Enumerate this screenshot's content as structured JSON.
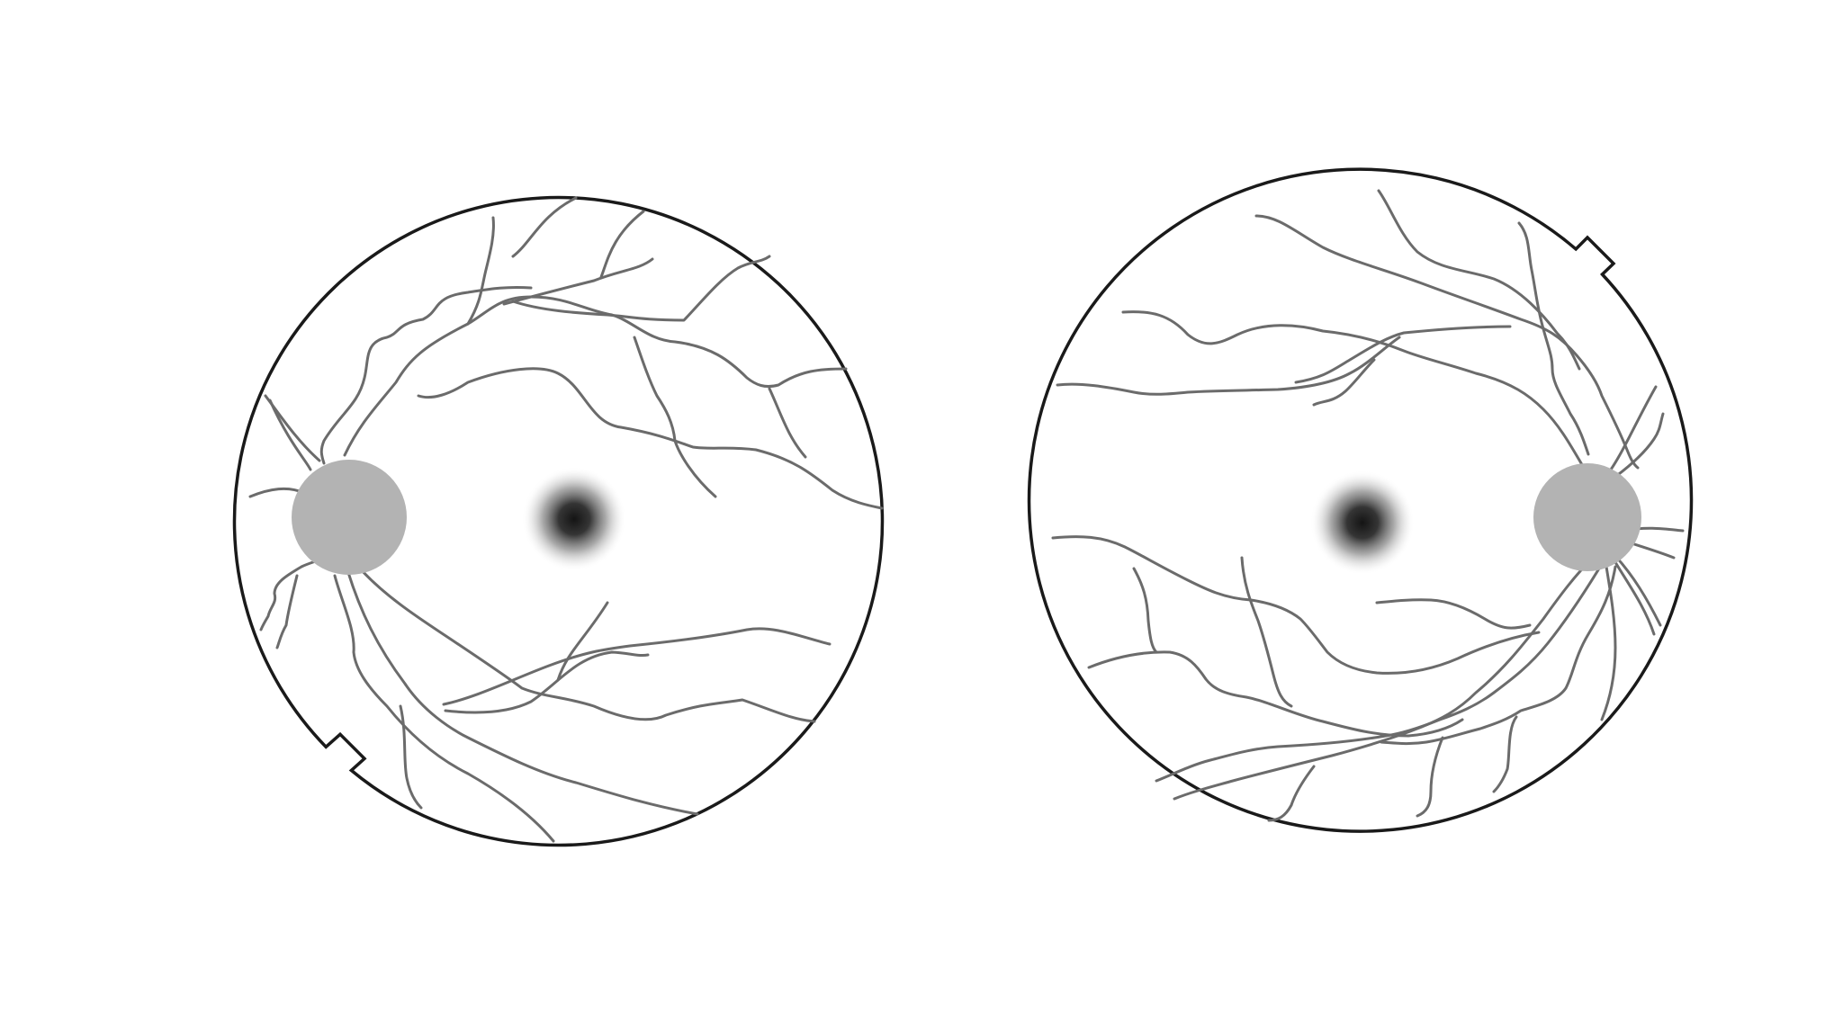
{
  "figure": {
    "left_eye": {
      "parts": [
        "retina-outline",
        "optic-disc",
        "macula",
        "vessels"
      ]
    },
    "right_eye": {
      "parts": [
        "retina-outline",
        "optic-disc",
        "macula",
        "vessels"
      ]
    },
    "colors": {
      "outline": "#1a1a1a",
      "vessel": "#6b6b6b",
      "optic_disc": "#b3b3b3",
      "fovea": "#141414",
      "background": "#ffffff"
    }
  }
}
